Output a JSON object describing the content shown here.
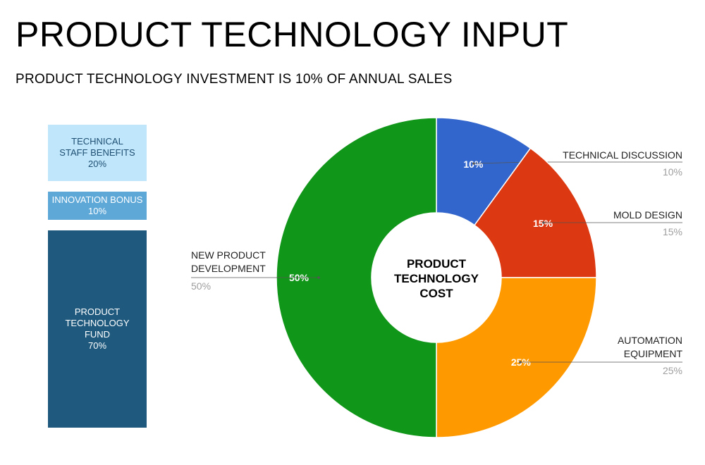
{
  "header": {
    "title": "PRODUCT TECHNOLOGY INPUT",
    "subtitle": "PRODUCT TECHNOLOGY INVESTMENT IS 10% OF ANNUAL SALES"
  },
  "stack": {
    "boxes": [
      {
        "label": "TECHNICAL\nSTAFF BENEFITS",
        "pct": "20%"
      },
      {
        "label": "INNOVATION BONUS",
        "pct": "10%"
      },
      {
        "label": "PRODUCT\nTECHNOLOGY\nFUND",
        "pct": "70%"
      }
    ]
  },
  "colors": {
    "technical_discussion": "#3366cc",
    "mold_design": "#dc3912",
    "automation_equipment": "#ff9900",
    "new_product_development": "#109618",
    "label_line": "#555555",
    "pct_gray": "#9e9e9e",
    "stack_light": "#bfe6fb",
    "stack_mid": "#5ea8d8",
    "stack_dark": "#1f5a7e"
  },
  "chart_data": {
    "type": "pie",
    "donut": true,
    "center_label": "PRODUCT\nTECHNOLOGY\nCOST",
    "slices": [
      {
        "label": "TECHNICAL DISCUSSION",
        "value": 10,
        "display": "10%"
      },
      {
        "label": "MOLD DESIGN",
        "value": 15,
        "display": "15%"
      },
      {
        "label": "AUTOMATION\nEQUIPMENT",
        "value": 25,
        "display": "25%"
      },
      {
        "label": "NEW PRODUCT\nDEVELOPMENT",
        "value": 50,
        "display": "50%"
      }
    ]
  }
}
